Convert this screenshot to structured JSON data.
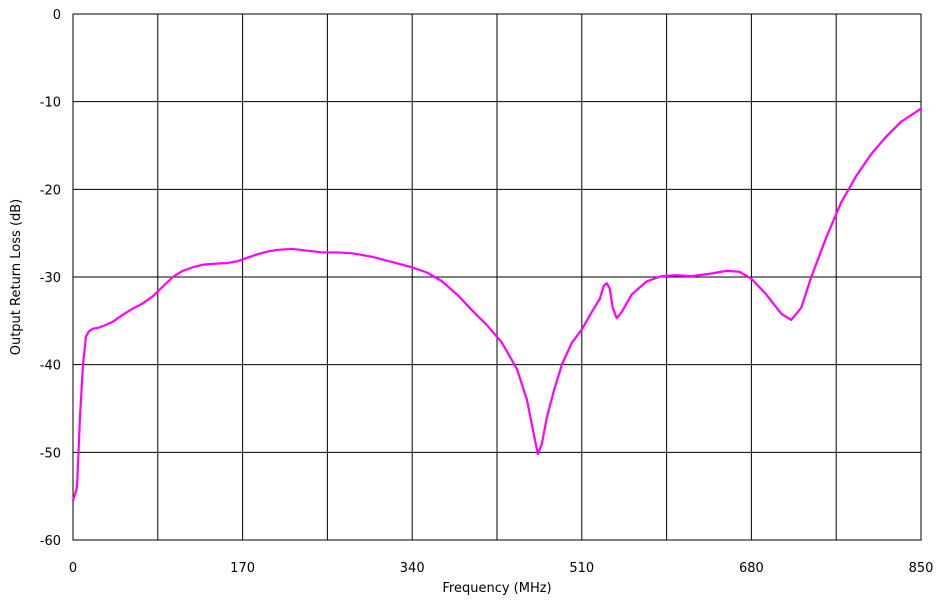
{
  "chart_data": {
    "type": "line",
    "title": "",
    "xlabel": "Frequency (MHz)",
    "ylabel": "Output Return Loss (dB)",
    "xlim": [
      0,
      850
    ],
    "ylim": [
      -60,
      0
    ],
    "x_ticks": [
      0,
      170,
      340,
      510,
      680,
      850
    ],
    "x_tick_labels": [
      "0",
      "170",
      "340",
      "510",
      "680",
      "850"
    ],
    "x_minor_grid": [
      85,
      255,
      425,
      595,
      765
    ],
    "y_ticks": [
      0,
      -10,
      -20,
      -30,
      -40,
      -50,
      -60
    ],
    "y_tick_labels": [
      "0",
      "-10",
      "-20",
      "-30",
      "-40",
      "-50",
      "-60"
    ],
    "grid": true,
    "legend": "none",
    "line_color": "#ff00ff",
    "series": [
      {
        "values": [
          [
            0,
            -55.5
          ],
          [
            4,
            -54
          ],
          [
            7,
            -46
          ],
          [
            10,
            -40
          ],
          [
            13,
            -36.8
          ],
          [
            16,
            -36.2
          ],
          [
            20,
            -35.9
          ],
          [
            25,
            -35.8
          ],
          [
            30,
            -35.6
          ],
          [
            40,
            -35.1
          ],
          [
            50,
            -34.3
          ],
          [
            60,
            -33.6
          ],
          [
            70,
            -33
          ],
          [
            80,
            -32.2
          ],
          [
            90,
            -31.1
          ],
          [
            100,
            -30
          ],
          [
            110,
            -29.3
          ],
          [
            120,
            -28.9
          ],
          [
            130,
            -28.6
          ],
          [
            140,
            -28.5
          ],
          [
            155,
            -28.4
          ],
          [
            165,
            -28.2
          ],
          [
            175,
            -27.8
          ],
          [
            185,
            -27.4
          ],
          [
            195,
            -27.1
          ],
          [
            205,
            -26.9
          ],
          [
            220,
            -26.8
          ],
          [
            235,
            -27
          ],
          [
            250,
            -27.2
          ],
          [
            265,
            -27.2
          ],
          [
            280,
            -27.3
          ],
          [
            300,
            -27.7
          ],
          [
            320,
            -28.3
          ],
          [
            340,
            -28.9
          ],
          [
            355,
            -29.5
          ],
          [
            370,
            -30.5
          ],
          [
            385,
            -32
          ],
          [
            400,
            -33.8
          ],
          [
            415,
            -35.5
          ],
          [
            430,
            -37.5
          ],
          [
            445,
            -40.5
          ],
          [
            455,
            -44
          ],
          [
            462,
            -48
          ],
          [
            466,
            -50.2
          ],
          [
            470,
            -49
          ],
          [
            475,
            -46
          ],
          [
            482,
            -43
          ],
          [
            490,
            -40
          ],
          [
            500,
            -37.5
          ],
          [
            510,
            -36
          ],
          [
            520,
            -34
          ],
          [
            528,
            -32.5
          ],
          [
            532,
            -31
          ],
          [
            535,
            -30.7
          ],
          [
            538,
            -31.3
          ],
          [
            541,
            -33.5
          ],
          [
            545,
            -34.7
          ],
          [
            550,
            -34
          ],
          [
            560,
            -32
          ],
          [
            575,
            -30.5
          ],
          [
            590,
            -29.9
          ],
          [
            605,
            -29.8
          ],
          [
            620,
            -29.9
          ],
          [
            640,
            -29.6
          ],
          [
            655,
            -29.3
          ],
          [
            668,
            -29.4
          ],
          [
            680,
            -30.2
          ],
          [
            695,
            -32
          ],
          [
            710,
            -34.2
          ],
          [
            720,
            -34.9
          ],
          [
            730,
            -33.5
          ],
          [
            740,
            -30
          ],
          [
            755,
            -25.5
          ],
          [
            770,
            -21.5
          ],
          [
            785,
            -18.5
          ],
          [
            800,
            -16
          ],
          [
            815,
            -14
          ],
          [
            830,
            -12.3
          ],
          [
            850,
            -10.8
          ]
        ]
      }
    ]
  }
}
